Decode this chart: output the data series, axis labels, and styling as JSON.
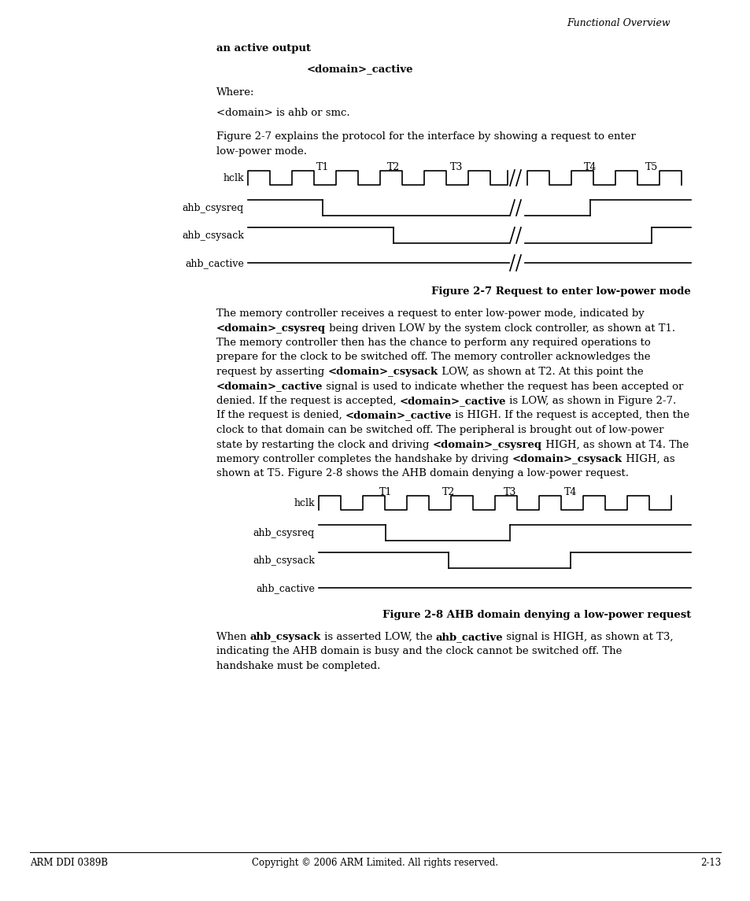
{
  "page_bg": "#ffffff",
  "text_color": "#000000",
  "header_text": "Functional Overview",
  "footer_left": "ARM DDI 0389B",
  "footer_center": "Copyright © 2006 ARM Limited. All rights reserved.",
  "footer_right": "2-13",
  "fig1_caption": "Figure 2-7 Request to enter low-power mode",
  "fig2_caption": "Figure 2-8 AHB domain denying a low-power request",
  "para1_lines": [
    [
      {
        "text": "The memory controller receives a request to enter low-power mode, indicated by",
        "bold": false
      }
    ],
    [
      {
        "text": "<domain>_csysreq",
        "bold": true
      },
      {
        "text": " being driven LOW by the system clock controller, as shown at T1.",
        "bold": false
      }
    ],
    [
      {
        "text": "The memory controller then has the chance to perform any required operations to",
        "bold": false
      }
    ],
    [
      {
        "text": "prepare for the clock to be switched off. The memory controller acknowledges the",
        "bold": false
      }
    ],
    [
      {
        "text": "request by asserting ",
        "bold": false
      },
      {
        "text": "<domain>_csysack",
        "bold": true
      },
      {
        "text": " LOW, as shown at T2. At this point the",
        "bold": false
      }
    ],
    [
      {
        "text": "<domain>_cactive",
        "bold": true
      },
      {
        "text": " signal is used to indicate whether the request has been accepted or",
        "bold": false
      }
    ],
    [
      {
        "text": "denied. If the request is accepted, ",
        "bold": false
      },
      {
        "text": "<domain>_cactive",
        "bold": true
      },
      {
        "text": " is LOW, as shown in Figure 2-7.",
        "bold": false
      }
    ],
    [
      {
        "text": "If the request is denied, ",
        "bold": false
      },
      {
        "text": "<domain>_cactive",
        "bold": true
      },
      {
        "text": " is HIGH. If the request is accepted, then the",
        "bold": false
      }
    ],
    [
      {
        "text": "clock to that domain can be switched off. The peripheral is brought out of low-power",
        "bold": false
      }
    ],
    [
      {
        "text": "state by restarting the clock and driving ",
        "bold": false
      },
      {
        "text": "<domain>_csysreq",
        "bold": true
      },
      {
        "text": " HIGH, as shown at T4. The",
        "bold": false
      }
    ],
    [
      {
        "text": "memory controller completes the handshake by driving ",
        "bold": false
      },
      {
        "text": "<domain>_csysack",
        "bold": true
      },
      {
        "text": " HIGH, as",
        "bold": false
      }
    ],
    [
      {
        "text": "shown at T5. Figure 2-8 shows the AHB domain denying a low-power request.",
        "bold": false
      }
    ]
  ],
  "para2_lines": [
    [
      {
        "text": "When ",
        "bold": false
      },
      {
        "text": "ahb_csysack",
        "bold": true
      },
      {
        "text": " is asserted LOW, the ",
        "bold": false
      },
      {
        "text": "ahb_cactive",
        "bold": true
      },
      {
        "text": " signal is HIGH, as shown at T3,",
        "bold": false
      }
    ],
    [
      {
        "text": "indicating the AHB domain is busy and the clock cannot be switched off. The",
        "bold": false
      }
    ],
    [
      {
        "text": "handshake must be completed.",
        "bold": false
      }
    ]
  ]
}
